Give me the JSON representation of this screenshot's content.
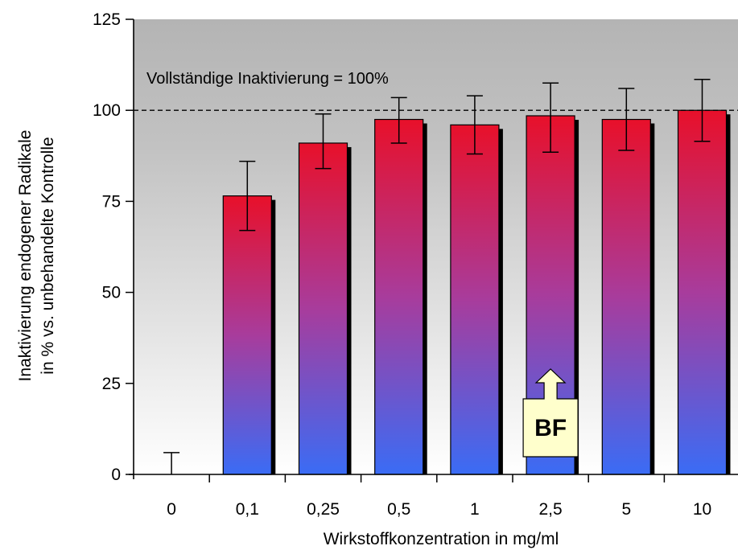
{
  "chart_data": {
    "type": "bar",
    "title": "",
    "xlabel": "Wirkstoffkonzentration in mg/ml",
    "ylabel": [
      "Inaktivierung endogener Radikale",
      "in % vs. unbehandelte Kontrolle"
    ],
    "categories": [
      "0",
      "0,1",
      "0,25",
      "0,5",
      "1",
      "2,5",
      "5",
      "10"
    ],
    "values": [
      0,
      76.5,
      91,
      97.5,
      96,
      98.5,
      97.5,
      100
    ],
    "error_low": [
      0,
      67,
      84,
      91,
      88,
      88.5,
      89,
      91.5
    ],
    "error_high": [
      6,
      86,
      99,
      103.5,
      104,
      107.5,
      106,
      108.5
    ],
    "ylim": [
      0,
      125
    ],
    "yticks": [
      "0",
      "25",
      "50",
      "75",
      "100",
      "125"
    ],
    "reference_line": {
      "value": 100,
      "label": "Vollständige Inaktivierung = 100%"
    },
    "highlight": {
      "category": "2,5",
      "label": "BF"
    },
    "colors": {
      "bar_top": "#e8102a",
      "bar_mid": "#a83c9c",
      "bar_bottom": "#3a6cf5",
      "bar_shadow": "#000000",
      "plot_bg_top": "#b4b4b4",
      "plot_bg_bottom": "#ffffff",
      "badge_fill": "#ffffcc"
    }
  }
}
